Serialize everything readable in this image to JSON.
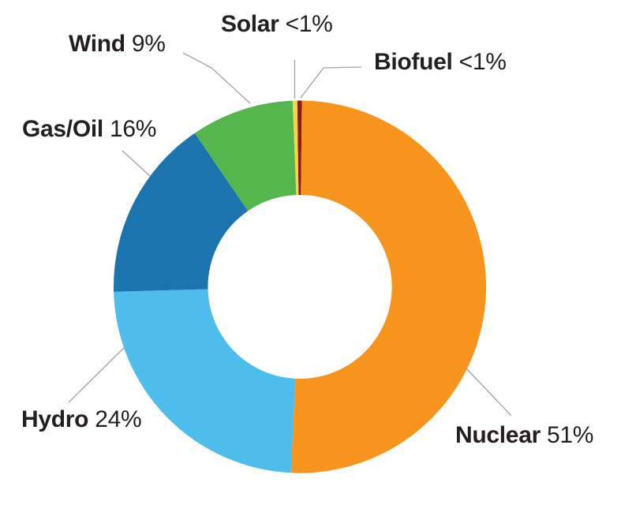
{
  "figure": {
    "background": "#ffffff",
    "text_color": "#231F20",
    "leader_line_color": "#a3a1a2"
  },
  "chart_data": {
    "type": "pie",
    "subtype": "donut",
    "title": "",
    "legend_position": "outside-callouts",
    "labels_joiner": " ",
    "series": [
      {
        "label": "Nuclear",
        "value": 51,
        "display": "51%",
        "color": "#F7941E"
      },
      {
        "label": "Hydro",
        "value": 24,
        "display": "24%",
        "color": "#4FBDEB"
      },
      {
        "label": "Gas/Oil",
        "value": 16,
        "display": "16%",
        "color": "#1B74AD"
      },
      {
        "label": "Wind",
        "value": 9,
        "display": "9%",
        "color": "#55B64E"
      },
      {
        "label": "Solar",
        "value": 0.4,
        "display": "<1%",
        "color": "#F9D34A"
      },
      {
        "label": "Biofuel",
        "value": 0.4,
        "display": "<1%",
        "color": "#8C1A11"
      }
    ]
  }
}
